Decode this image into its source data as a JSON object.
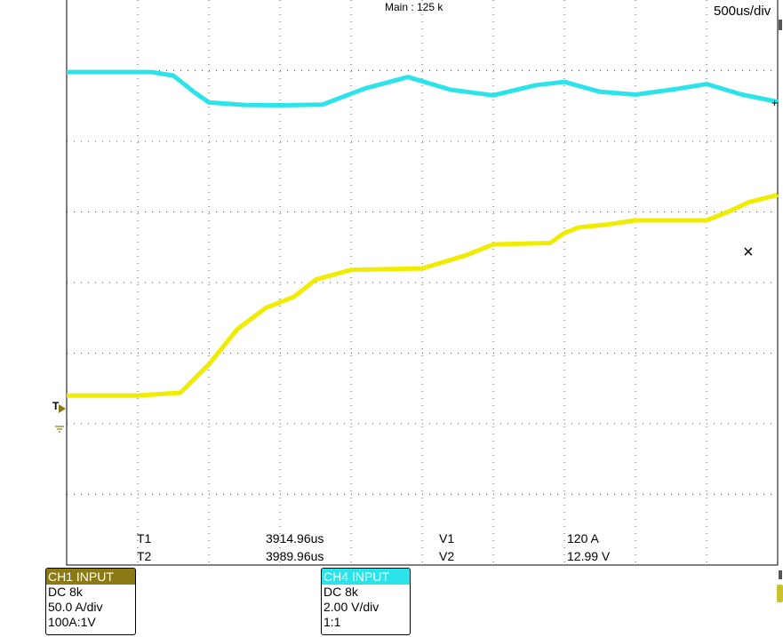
{
  "header": {
    "main_label": "Main : 125 k",
    "timebase": "500us/div"
  },
  "cursors": {
    "t1_label": "T1",
    "t1_value": "3914.96us",
    "t2_label": "T2",
    "t2_value": "3989.96us",
    "v1_label": "V1",
    "v1_value": "120 A",
    "v2_label": "V2",
    "v2_value": "12.99 V"
  },
  "markers": {
    "trigger_level": "T",
    "cursor_mark": "×"
  },
  "ch1": {
    "title": "CH1 INPUT",
    "coupling": "DC 8k",
    "scale": "50.0 A/div",
    "probe": "100A:1V",
    "color": "#f0ec00"
  },
  "ch4": {
    "title": "CH4 INPUT",
    "coupling": "DC 8k",
    "scale": "2.00 V/div",
    "probe": "1:1",
    "color": "#2de3ea"
  },
  "chart_data": {
    "type": "line",
    "title": "",
    "xlabel": "",
    "ylabel": "",
    "x_unit": "us",
    "x_range": [
      0,
      5000
    ],
    "divisions": {
      "x": 10,
      "y": 8
    },
    "y_range_div": [
      -4,
      4
    ],
    "grid": true,
    "series": [
      {
        "channel": "CH1",
        "unit": "A",
        "color": "#f0ec00",
        "x": [
          0,
          500,
          800,
          1000,
          1200,
          1400,
          1600,
          1750,
          2000,
          2500,
          2800,
          3000,
          3400,
          3500,
          3600,
          3800,
          4000,
          4500,
          4650,
          4800,
          5000
        ],
        "y": [
          -80,
          -80,
          -78,
          -58,
          -33,
          -18,
          -10,
          2,
          9,
          10,
          19,
          27,
          28,
          35,
          39,
          41,
          44,
          44,
          50,
          57,
          62
        ]
      },
      {
        "channel": "CH4",
        "unit": "V",
        "color": "#2de3ea",
        "x": [
          0,
          600,
          750,
          900,
          1000,
          1250,
          1500,
          1800,
          2100,
          2400,
          2700,
          3000,
          3300,
          3500,
          3750,
          4000,
          4300,
          4500,
          4750,
          5000
        ],
        "y": [
          5.96,
          5.96,
          5.86,
          5.38,
          5.1,
          5.03,
          5.02,
          5.04,
          5.5,
          5.82,
          5.46,
          5.3,
          5.59,
          5.68,
          5.4,
          5.32,
          5.49,
          5.62,
          5.32,
          5.12
        ]
      }
    ]
  }
}
